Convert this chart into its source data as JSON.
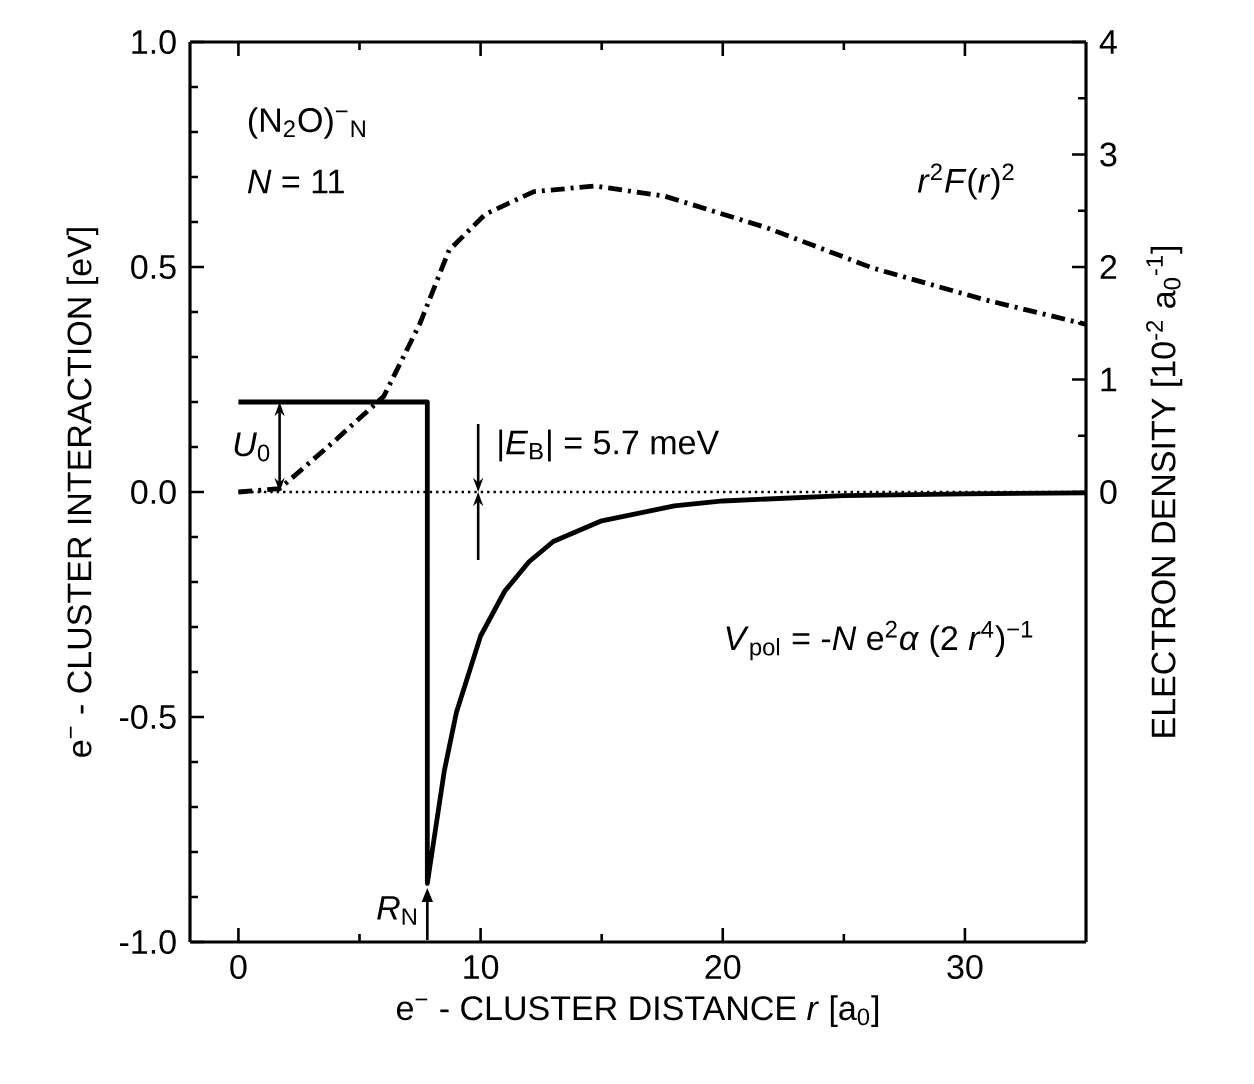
{
  "chart_data": {
    "type": "line",
    "xlabel": "e$^{−}$ - CLUSTER DISTANCE  *r*  [a$_{0}$]",
    "ylabel": "e$^{−}$ - CLUSTER INTERACTION [eV]",
    "y2label": "ELECTRON DENSITY [10$^{-2}$ a$_{0}$$^{-1}$]",
    "xlim": [
      -2,
      35
    ],
    "xticks": [
      0,
      10,
      20,
      30
    ],
    "ylim": [
      -1,
      1
    ],
    "yticks": [
      {
        "value": -1,
        "label": "-1.0"
      },
      {
        "value": -0.5,
        "label": "-0.5"
      },
      {
        "value": 0,
        "label": "0.0"
      },
      {
        "value": 0.5,
        "label": "0.5"
      },
      {
        "value": 1,
        "label": "1.0"
      }
    ],
    "y2lim": [
      -4,
      4
    ],
    "y2ticks": [
      0,
      1,
      2,
      3,
      4
    ],
    "grid": false,
    "legend": false,
    "series": [
      {
        "name": "*V*$_{pol}$ = -*N* e$^{2}$*α* (2 *r*$^{4}$)$^{−1}$",
        "color": "#000000",
        "line_style": "solid",
        "x": [
          0,
          7.8,
          7.8,
          8.5,
          9,
          10,
          11,
          12,
          13,
          15,
          18,
          20,
          25,
          30,
          35
        ],
        "values": [
          0.2,
          0.2,
          -0.87,
          -0.62,
          -0.49,
          -0.32,
          -0.22,
          -0.155,
          -0.11,
          -0.064,
          -0.031,
          -0.02,
          -0.008,
          -0.004,
          -0.002
        ]
      },
      {
        "name": "*r*$^{2}$*F*(*r*)$^{2}$",
        "color": "#000000",
        "line_style": "dashdot",
        "axis": "y2",
        "x": [
          0,
          1.7,
          3.9,
          6.0,
          7.5,
          8.7,
          10.2,
          12.2,
          14.7,
          17.6,
          21.8,
          26.2,
          30.8,
          35
        ],
        "values": [
          0,
          0.03,
          0.44,
          0.85,
          1.5,
          2.15,
          2.47,
          2.67,
          2.72,
          2.63,
          2.35,
          1.99,
          1.71,
          1.49
        ]
      }
    ],
    "ref_lines": [
      {
        "axis": "y",
        "value": 0,
        "line_style": "dotted"
      }
    ],
    "annotations": [
      "(N$_{2}$O)$^{−}$$_{N}$",
      "*N* = 11",
      "*U*$_{0}$",
      "|*E*$_{B}$| = 5.7 meV",
      "*R*$_{N}$"
    ]
  }
}
